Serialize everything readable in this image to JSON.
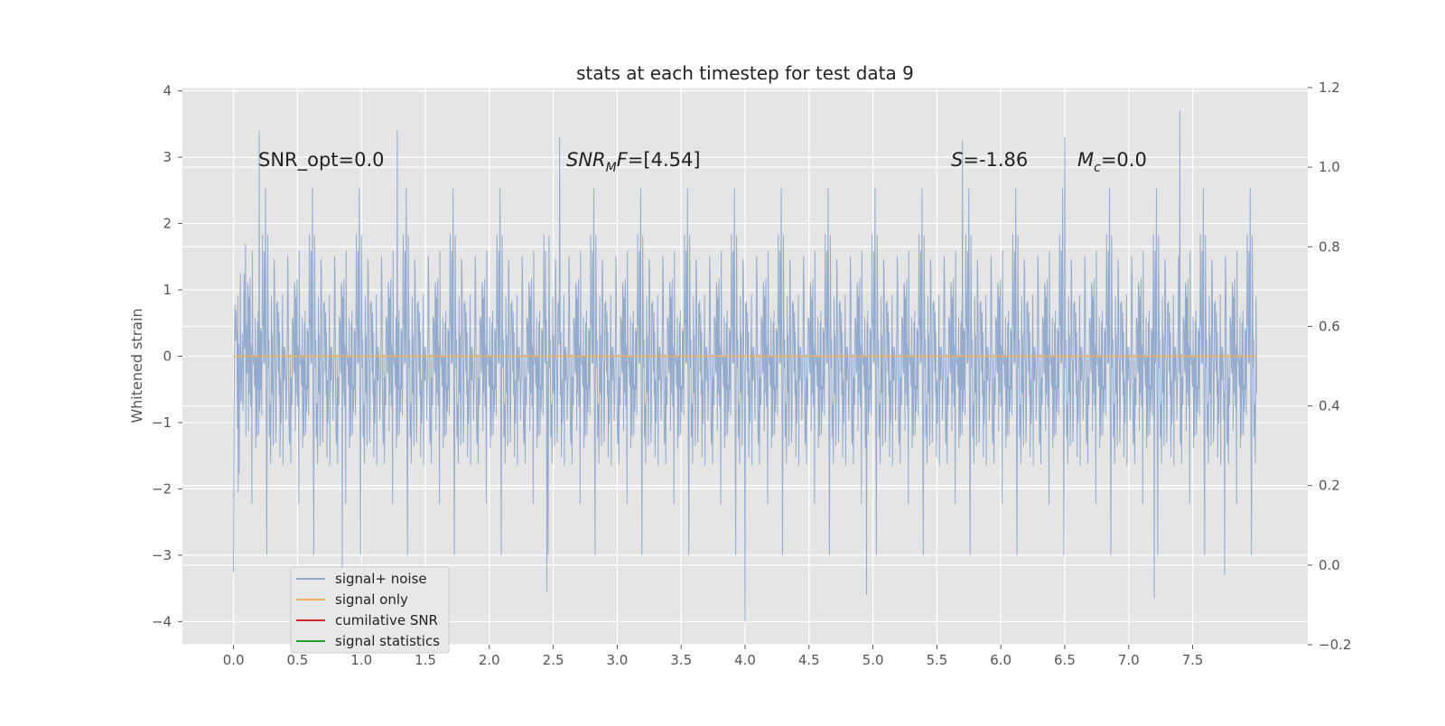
{
  "chart_data": {
    "type": "line",
    "title": "stats at each timestep for test data 9",
    "xlabel": "",
    "ylabel": "Whitened strain",
    "xlim": [
      -0.4,
      8.4
    ],
    "ylim": [
      -4.35,
      4.05
    ],
    "y2lim": [
      -0.2,
      1.2
    ],
    "x_ticks": [
      0.0,
      0.5,
      1.0,
      1.5,
      2.0,
      2.5,
      3.0,
      3.5,
      4.0,
      4.5,
      5.0,
      5.5,
      6.0,
      6.5,
      7.0,
      7.5
    ],
    "x_tick_labels": [
      "0.0",
      "0.5",
      "1.0",
      "1.5",
      "2.0",
      "2.5",
      "3.0",
      "3.5",
      "4.0",
      "4.5",
      "5.0",
      "5.5",
      "6.0",
      "6.5",
      "7.0",
      "7.5"
    ],
    "y_ticks": [
      4,
      3,
      2,
      1,
      0,
      -1,
      -2,
      -3,
      -4
    ],
    "y_tick_labels": [
      "4",
      "3",
      "2",
      "1",
      "0",
      "−1",
      "−2",
      "−3",
      "−4"
    ],
    "y2_ticks": [
      1.2,
      1.0,
      0.8,
      0.6,
      0.4,
      0.2,
      0.0,
      -0.2
    ],
    "y2_tick_labels": [
      "1.2",
      "1.0",
      "0.8",
      "0.6",
      "0.4",
      "0.2",
      "0.0",
      "−0.2"
    ],
    "grid": true,
    "legend_position": "lower-left",
    "series": [
      {
        "name": "signal+ noise",
        "color": "#8fa8cc",
        "x_range": [
          0.0,
          8.0
        ],
        "description_values": {
          "spike_peaks": [
            [
              0.2,
              3.4
            ],
            [
              1.28,
              3.4
            ],
            [
              2.55,
              3.3
            ],
            [
              7.4,
              3.7
            ],
            [
              5.7,
              3.25
            ],
            [
              6.5,
              3.3
            ]
          ],
          "spike_troughs": [
            [
              0.0,
              -3.25
            ],
            [
              0.85,
              -3.2
            ],
            [
              2.45,
              -3.55
            ],
            [
              4.0,
              -4.0
            ],
            [
              4.95,
              -3.6
            ],
            [
              7.2,
              -3.65
            ],
            [
              7.75,
              -3.3
            ]
          ]
        },
        "values_note_ranges": {
          "typical_min": -1.7,
          "typical_max": 1.7
        }
      },
      {
        "name": "signal only",
        "color": "#f0b05a",
        "x": [
          0.0,
          8.0
        ],
        "y": [
          0.0,
          0.0
        ]
      },
      {
        "name": "cumilative SNR",
        "color": "#d62728",
        "x": [],
        "y": []
      },
      {
        "name": "signal statistics",
        "color": "#2ca02c",
        "x": [],
        "y": []
      }
    ],
    "annotations": [
      {
        "text": "SNR_opt=0.0",
        "x": 0.2,
        "y": 2.85
      },
      {
        "text_base": "SNR",
        "text_sub": "M",
        "text_tail": "F=[4.54]",
        "x": 2.6,
        "y": 2.85
      },
      {
        "text_base": "S",
        "text_tail": "=-1.86",
        "x": 5.6,
        "y": 2.85
      },
      {
        "text_base": "M",
        "text_sub": "c",
        "text_tail": "=0.0",
        "x": 6.6,
        "y": 2.85
      }
    ]
  }
}
